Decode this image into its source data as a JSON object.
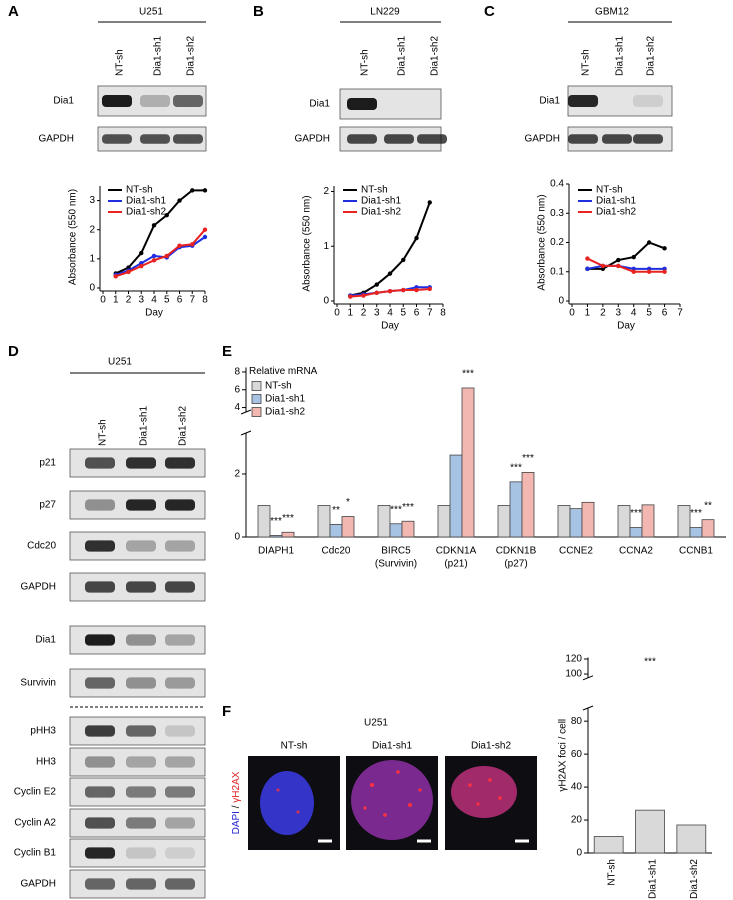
{
  "panel_labels": [
    "A",
    "B",
    "C",
    "D",
    "E",
    "F"
  ],
  "blots": [
    {
      "title": "U251",
      "lanes": [
        "NT-sh",
        "Dia1-sh1",
        "Dia1-sh2"
      ],
      "rows": [
        "Dia1",
        "GAPDH"
      ]
    },
    {
      "title": "LN229",
      "lanes": [
        "NT-sh",
        "Dia1-sh1",
        "Dia1-sh2"
      ],
      "rows": [
        "Dia1",
        "GAPDH"
      ]
    },
    {
      "title": "GBM12",
      "lanes": [
        "NT-sh",
        "Dia1-sh1",
        "Dia1-sh2"
      ],
      "rows": [
        "Dia1",
        "GAPDH"
      ]
    },
    {
      "title": "U251",
      "lanes": [
        "NT-sh",
        "Dia1-sh1",
        "Dia1-sh2"
      ],
      "rows": [
        "p21",
        "p27",
        "Cdc20",
        "GAPDH",
        "Dia1",
        "Survivin",
        "pHH3",
        "HH3",
        "Cyclin E2",
        "Cyclin A2",
        "Cyclin B1",
        "GAPDH"
      ]
    }
  ],
  "images": {
    "title": "U251",
    "lanes": [
      "NT-sh",
      "Dia1-sh1",
      "Dia1-sh2"
    ],
    "channel_label": [
      "DAPI",
      " / ",
      "γH2AX"
    ]
  },
  "chart_data": [
    {
      "type": "line",
      "xlabel": "Day",
      "ylabel": "Absorbance (550 nm)",
      "x": [
        1,
        2,
        3,
        4,
        5,
        6,
        7,
        8
      ],
      "series": [
        {
          "name": "NT-sh",
          "color": "#000000",
          "values": [
            0.5,
            0.7,
            1.2,
            2.15,
            2.5,
            3.0,
            3.35,
            3.35
          ]
        },
        {
          "name": "Dia1-sh1",
          "color": "#1f2fe0",
          "values": [
            0.45,
            0.6,
            0.85,
            1.1,
            1.05,
            1.4,
            1.45,
            1.75
          ]
        },
        {
          "name": "Dia1-sh2",
          "color": "#e8231f",
          "values": [
            0.4,
            0.55,
            0.75,
            0.95,
            1.1,
            1.45,
            1.5,
            2.0
          ]
        }
      ],
      "xlim": [
        0,
        8
      ],
      "xticks": [
        0,
        1,
        2,
        3,
        4,
        5,
        6,
        7,
        8
      ],
      "ylim": [
        0,
        3.5
      ],
      "yticks": [
        0,
        1,
        2,
        3
      ]
    },
    {
      "type": "line",
      "xlabel": "Day",
      "ylabel": "Absorbance (550 nm)",
      "x": [
        1,
        2,
        3,
        4,
        5,
        6,
        7
      ],
      "series": [
        {
          "name": "NT-sh",
          "color": "#000000",
          "values": [
            0.1,
            0.15,
            0.3,
            0.5,
            0.75,
            1.15,
            1.8
          ]
        },
        {
          "name": "Dia1-sh1",
          "color": "#1f2fe0",
          "values": [
            0.1,
            0.12,
            0.15,
            0.18,
            0.2,
            0.25,
            0.25
          ]
        },
        {
          "name": "Dia1-sh2",
          "color": "#e8231f",
          "values": [
            0.08,
            0.1,
            0.15,
            0.18,
            0.2,
            0.2,
            0.22
          ]
        }
      ],
      "xlim": [
        0,
        8
      ],
      "xticks": [
        0,
        1,
        2,
        3,
        4,
        5,
        6,
        7,
        8
      ],
      "ylim": [
        0,
        2.1
      ],
      "yticks": [
        0,
        1,
        2
      ]
    },
    {
      "type": "line",
      "xlabel": "Day",
      "ylabel": "Absorbance (550 nm)",
      "x": [
        1,
        2,
        3,
        4,
        5,
        6
      ],
      "series": [
        {
          "name": "NT-sh",
          "color": "#000000",
          "values": [
            0.11,
            0.11,
            0.14,
            0.15,
            0.2,
            0.18
          ]
        },
        {
          "name": "Dia1-sh1",
          "color": "#1f2fe0",
          "values": [
            0.11,
            0.12,
            0.12,
            0.11,
            0.11,
            0.11
          ]
        },
        {
          "name": "Dia1-sh2",
          "color": "#e8231f",
          "values": [
            0.145,
            0.12,
            0.12,
            0.1,
            0.1,
            0.1
          ]
        }
      ],
      "xlim": [
        0,
        7
      ],
      "xticks": [
        0,
        1,
        2,
        3,
        4,
        5,
        6,
        7
      ],
      "ylim": [
        0,
        0.4
      ],
      "yticks": [
        0,
        0.1,
        0.2,
        0.3,
        0.4
      ]
    },
    {
      "type": "bar",
      "ylabel": "Relative mRNA",
      "categories": [
        [
          "DIAPH1"
        ],
        [
          "Cdc20"
        ],
        [
          "BIRC5",
          "(Survivin)"
        ],
        [
          "CDKN1A",
          "(p21)"
        ],
        [
          "CDKN1B",
          "(p27)"
        ],
        [
          "CCNE2"
        ],
        [
          "CCNA2"
        ],
        [
          "CCNB1"
        ]
      ],
      "series": [
        {
          "name": "NT-sh",
          "color": "#d9d9d9",
          "values": [
            1,
            1,
            1,
            1,
            1,
            1,
            1,
            1
          ],
          "significance": [
            null,
            null,
            null,
            null,
            null,
            null,
            null,
            null
          ]
        },
        {
          "name": "Dia1-sh1",
          "color": "#a7c3e3",
          "values": [
            0.05,
            0.4,
            0.42,
            2.6,
            1.75,
            0.9,
            0.3,
            0.3
          ],
          "significance": [
            "***",
            "**",
            "***",
            null,
            "***",
            null,
            "***",
            "***"
          ]
        },
        {
          "name": "Dia1-sh2",
          "color": "#f3b7b1",
          "values": [
            0.15,
            0.65,
            0.5,
            6.2,
            2.05,
            1.1,
            1.02,
            0.55
          ],
          "significance": [
            "***",
            "*",
            "***",
            "***",
            "***",
            null,
            null,
            "**"
          ]
        }
      ],
      "ylim": [
        0,
        8.5
      ],
      "y_break": [
        3.3,
        3.5
      ],
      "yticks": [
        0,
        2,
        4,
        6,
        8
      ]
    },
    {
      "type": "bar",
      "ylabel": "γH2AX foci / cell",
      "categories": [
        "NT-sh",
        "Dia1-sh1",
        "Dia1-sh2"
      ],
      "values": [
        10,
        26,
        17
      ],
      "color": "#d9d9d9",
      "significance": [
        null,
        "***",
        null
      ],
      "ylim": [
        0,
        122
      ],
      "y_break": [
        88,
        95
      ],
      "yticks": [
        0,
        20,
        40,
        60,
        80,
        100,
        120
      ]
    }
  ]
}
